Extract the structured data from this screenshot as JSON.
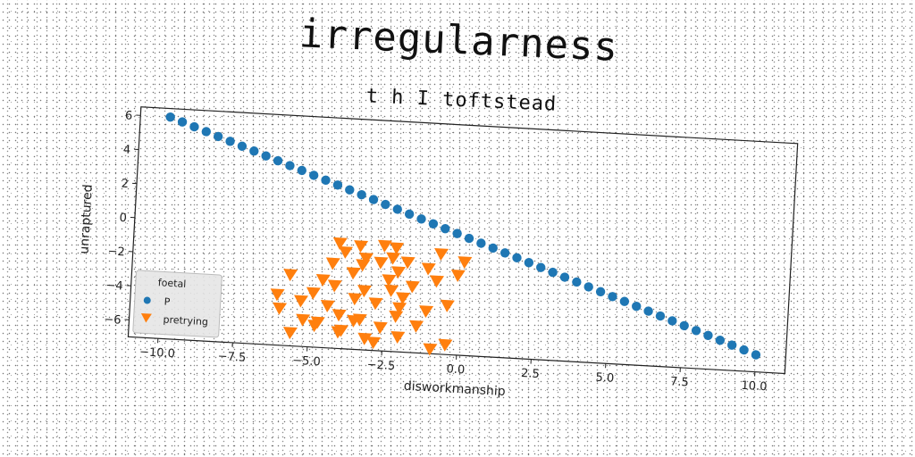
{
  "chart_data": {
    "type": "scatter",
    "title": "irregularness",
    "subtitle": "t h I toftstead",
    "xlabel": "disworkmanship",
    "ylabel": "unraptured",
    "xlim": [
      -11,
      11
    ],
    "ylim": [
      -7,
      6.5
    ],
    "xticks": [
      -10.0,
      -7.5,
      -5.0,
      -2.5,
      0.0,
      2.5,
      5.0,
      7.5,
      10.0
    ],
    "xtick_labels": [
      "−10.0",
      "−7.5",
      "−5.0",
      "−2.5",
      "0.0",
      "2.5",
      "5.0",
      "7.5",
      "10.0"
    ],
    "yticks": [
      -6,
      -4,
      -2,
      0,
      2,
      4,
      6
    ],
    "ytick_labels": [
      "−6",
      "−4",
      "−2",
      "0",
      "2",
      "4",
      "6"
    ],
    "grid": false,
    "legend": {
      "title": "foetal",
      "placement": "lower-left",
      "entries": [
        "P",
        "pretrying"
      ]
    },
    "colors": {
      "P": "#1f77b4",
      "pretrying": "#ff7f0e"
    },
    "series": [
      {
        "name": "P",
        "marker": "circle",
        "line": {
          "slope": -0.6,
          "intercept": 0,
          "x_start": -10,
          "x_end": 10,
          "count": 50
        }
      },
      {
        "name": "pretrying",
        "marker": "triangle-down",
        "points": [
          [
            -4.1,
            -0.8
          ],
          [
            -3.4,
            -0.9
          ],
          [
            -2.6,
            -0.8
          ],
          [
            -2.2,
            -0.9
          ],
          [
            -0.7,
            -1.1
          ],
          [
            0.1,
            -1.5
          ],
          [
            -3.9,
            -1.3
          ],
          [
            -3.2,
            -1.6
          ],
          [
            -2.3,
            -1.5
          ],
          [
            -1.8,
            -1.7
          ],
          [
            -4.3,
            -2.0
          ],
          [
            -3.3,
            -2.0
          ],
          [
            -2.7,
            -1.8
          ],
          [
            -2.1,
            -2.3
          ],
          [
            -1.1,
            -2.0
          ],
          [
            -0.1,
            -2.3
          ],
          [
            -5.7,
            -2.8
          ],
          [
            -4.6,
            -3.0
          ],
          [
            -3.6,
            -2.5
          ],
          [
            -2.4,
            -2.8
          ],
          [
            -1.6,
            -3.1
          ],
          [
            -0.8,
            -2.7
          ],
          [
            -4.9,
            -3.8
          ],
          [
            -4.2,
            -3.3
          ],
          [
            -3.2,
            -3.5
          ],
          [
            -2.3,
            -3.4
          ],
          [
            -1.9,
            -3.8
          ],
          [
            -6.1,
            -4.0
          ],
          [
            -5.3,
            -4.3
          ],
          [
            -4.4,
            -4.5
          ],
          [
            -3.5,
            -4.0
          ],
          [
            -2.8,
            -4.2
          ],
          [
            -2.0,
            -4.4
          ],
          [
            -0.4,
            -4.1
          ],
          [
            -6.0,
            -4.8
          ],
          [
            -4.0,
            -5.0
          ],
          [
            -3.3,
            -5.2
          ],
          [
            -2.1,
            -4.9
          ],
          [
            -1.1,
            -4.5
          ],
          [
            -5.2,
            -5.4
          ],
          [
            -4.7,
            -5.5
          ],
          [
            -3.5,
            -5.3
          ],
          [
            -2.6,
            -5.6
          ],
          [
            -1.4,
            -5.4
          ],
          [
            -5.6,
            -6.2
          ],
          [
            -4.0,
            -6.0
          ],
          [
            -3.1,
            -6.3
          ],
          [
            -2.0,
            -6.1
          ],
          [
            -0.9,
            -6.7
          ],
          [
            -0.4,
            -6.4
          ],
          [
            -4.8,
            -5.7
          ],
          [
            -2.8,
            -6.5
          ],
          [
            -3.9,
            -5.9
          ]
        ]
      }
    ]
  }
}
